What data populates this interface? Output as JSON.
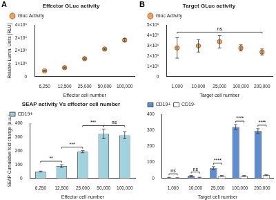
{
  "chart_data": [
    {
      "panel": "A",
      "type": "scatter",
      "title": "Effector GLuc activity",
      "x_label": "Effector cell number",
      "y_label": "Relative Lumin. Units [RLU]",
      "categories": [
        "6,250",
        "12,500",
        "25,000",
        "50,000",
        "100,000"
      ],
      "series": [
        {
          "name": "Gluc Activity",
          "color": "#f4a259",
          "marker": "circle",
          "values": [
            45000,
            70000,
            140000,
            215000,
            285000
          ],
          "errors": [
            3000,
            4000,
            5000,
            6000,
            12000
          ]
        }
      ],
      "ylim": [
        0,
        400000
      ],
      "yticks": [
        0,
        {
          "value": 100000,
          "label": "1×10⁵"
        },
        {
          "value": 200000,
          "label": "2×10⁵"
        },
        {
          "value": 300000,
          "label": "3×10⁵"
        },
        {
          "value": 400000,
          "label": "4×10⁵"
        }
      ],
      "legend": "top-left",
      "grid": false
    },
    {
      "panel": "B",
      "type": "scatter",
      "title": "Target GLuc activity",
      "x_label": "Target cell number",
      "categories": [
        "1,000",
        "10,000",
        "25,000",
        "100,000",
        "200,000"
      ],
      "series": [
        {
          "name": "Gluc Activity",
          "color": "#f4a259",
          "marker": "circle",
          "values": [
            280000,
            300000,
            340000,
            280000,
            240000
          ],
          "errors": [
            100000,
            60000,
            60000,
            30000,
            30000
          ]
        }
      ],
      "ylim": [
        0,
        500000
      ],
      "yticks": [
        0,
        {
          "value": 100000,
          "label": "1×10⁵"
        },
        {
          "value": 200000,
          "label": "2×10⁵"
        },
        {
          "value": 300000,
          "label": "3×10⁵"
        },
        {
          "value": 400000,
          "label": "4×10⁵"
        },
        {
          "value": 500000,
          "label": "5×10⁵"
        }
      ],
      "annotations": [
        {
          "text": "ns",
          "from": "1,000",
          "to": "200,000"
        }
      ],
      "legend": "top-left",
      "grid": false
    },
    {
      "type": "bar",
      "title": "SEAP activity Vs effector cell number",
      "x_label": "Effector cell number",
      "y_label": "SEAP Cumulative fold change (a.u.)",
      "categories": [
        "6,250",
        "12,500",
        "25,000",
        "50,000",
        "100,000"
      ],
      "series": [
        {
          "name": "CD19+",
          "color": "#9fd3df",
          "values": [
            50,
            90,
            195,
            325,
            315
          ],
          "errors": [
            3,
            10,
            8,
            35,
            25
          ]
        }
      ],
      "ylim": [
        0,
        400
      ],
      "yticks": [
        0,
        100,
        200,
        300,
        400
      ],
      "annotations": [
        {
          "text": "**",
          "from": "6,250",
          "to": "12,500"
        },
        {
          "text": "***",
          "from": "12,500",
          "to": "25,000"
        },
        {
          "text": "***",
          "from": "25,000",
          "to": "50,000"
        },
        {
          "text": "ns",
          "from": "50,000",
          "to": "100,000"
        }
      ],
      "legend": "top-left",
      "grid": false
    },
    {
      "type": "bar",
      "x_label": "Target cell number",
      "categories": [
        "1,000",
        "10,000",
        "25,000",
        "100,000",
        "200,000"
      ],
      "series": [
        {
          "name": "CD19+",
          "color": "#5b8ed6",
          "values": [
            5,
            15,
            65,
            320,
            295
          ],
          "errors": [
            2,
            3,
            8,
            15,
            15
          ]
        },
        {
          "name": "CD19-",
          "color": "#ffffff",
          "values": [
            3,
            5,
            15,
            15,
            20
          ],
          "errors": [
            1,
            2,
            3,
            3,
            3
          ]
        }
      ],
      "ylim": [
        0,
        400
      ],
      "yticks": [
        0,
        100,
        200,
        300,
        400
      ],
      "annotations": [
        {
          "text": "ns",
          "category": "1,000"
        },
        {
          "text": "ns",
          "category": "10,000"
        },
        {
          "text": "****",
          "category": "25,000"
        },
        {
          "text": "****",
          "category": "100,000"
        },
        {
          "text": "****",
          "category": "200,000"
        }
      ],
      "legend": "top-left",
      "grid": false
    }
  ]
}
